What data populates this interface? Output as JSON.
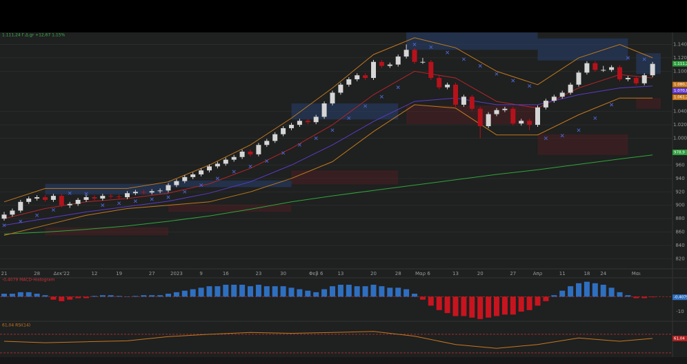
{
  "chart_data": {
    "type": "candlestick",
    "header": "1.111,24 Γ.Δ.gr +12,67 1,15%",
    "categories": [
      "21",
      null,
      null,
      null,
      "28",
      null,
      null,
      "Δεκ'22",
      null,
      null,
      null,
      "12",
      null,
      null,
      "19",
      null,
      null,
      null,
      "27",
      null,
      null,
      "2023",
      null,
      null,
      "9",
      null,
      null,
      "16",
      null,
      null,
      null,
      "23",
      null,
      null,
      "30",
      null,
      null,
      null,
      "Φεβ 6",
      null,
      null,
      "13",
      null,
      null,
      null,
      "20",
      null,
      null,
      "28",
      null,
      null,
      "Μαρ 6",
      null,
      null,
      null,
      "13",
      null,
      null,
      "20",
      null,
      null,
      null,
      "27",
      null,
      null,
      "Απρ",
      null,
      null,
      "11",
      null,
      null,
      "18",
      null,
      "24",
      null,
      null,
      null,
      "Μαι",
      null,
      null
    ],
    "candles": [
      [
        880,
        890,
        877,
        886
      ],
      [
        886,
        895,
        883,
        892
      ],
      [
        892,
        908,
        889,
        905
      ],
      [
        905,
        913,
        902,
        910
      ],
      [
        910,
        915,
        907,
        912
      ],
      [
        912,
        915,
        905,
        908
      ],
      [
        908,
        917,
        905,
        914
      ],
      [
        914,
        917,
        897,
        900
      ],
      [
        900,
        905,
        896,
        902
      ],
      [
        902,
        911,
        899,
        908
      ],
      [
        908,
        915,
        905,
        912
      ],
      [
        912,
        915,
        907,
        910
      ],
      [
        910,
        917,
        907,
        914
      ],
      [
        914,
        917,
        910,
        913
      ],
      [
        913,
        916,
        909,
        912
      ],
      [
        912,
        921,
        909,
        918
      ],
      [
        918,
        923,
        915,
        920
      ],
      [
        920,
        923,
        916,
        919
      ],
      [
        919,
        924,
        916,
        921
      ],
      [
        921,
        925,
        918,
        922
      ],
      [
        922,
        933,
        919,
        930
      ],
      [
        930,
        939,
        927,
        936
      ],
      [
        936,
        945,
        933,
        942
      ],
      [
        942,
        949,
        939,
        946
      ],
      [
        946,
        955,
        943,
        952
      ],
      [
        952,
        961,
        949,
        958
      ],
      [
        958,
        965,
        955,
        962
      ],
      [
        962,
        971,
        959,
        968
      ],
      [
        968,
        975,
        965,
        972
      ],
      [
        972,
        983,
        969,
        980
      ],
      [
        980,
        983,
        973,
        976
      ],
      [
        976,
        993,
        973,
        990
      ],
      [
        990,
        999,
        987,
        996
      ],
      [
        996,
        1009,
        993,
        1006
      ],
      [
        1006,
        1018,
        1003,
        1015
      ],
      [
        1015,
        1023,
        1012,
        1020
      ],
      [
        1020,
        1029,
        1017,
        1026
      ],
      [
        1026,
        1029,
        1021,
        1024
      ],
      [
        1024,
        1035,
        1021,
        1032
      ],
      [
        1032,
        1055,
        1029,
        1052
      ],
      [
        1052,
        1071,
        1049,
        1068
      ],
      [
        1068,
        1083,
        1065,
        1080
      ],
      [
        1080,
        1091,
        1077,
        1088
      ],
      [
        1088,
        1097,
        1085,
        1094
      ],
      [
        1094,
        1097,
        1087,
        1090
      ],
      [
        1090,
        1117,
        1087,
        1114
      ],
      [
        1114,
        1117,
        1105,
        1108
      ],
      [
        1108,
        1113,
        1105,
        1110
      ],
      [
        1110,
        1125,
        1107,
        1122
      ],
      [
        1122,
        1140,
        1119,
        1132
      ],
      [
        1132,
        1135,
        1111,
        1114
      ],
      [
        1114,
        1120,
        1111,
        1114
      ],
      [
        1114,
        1117,
        1087,
        1090
      ],
      [
        1090,
        1093,
        1073,
        1076
      ],
      [
        1076,
        1083,
        1073,
        1080
      ],
      [
        1080,
        1083,
        1047,
        1050
      ],
      [
        1050,
        1065,
        1047,
        1062
      ],
      [
        1062,
        1065,
        1041,
        1044
      ],
      [
        1044,
        1047,
        1000,
        1018
      ],
      [
        1018,
        1039,
        1015,
        1036
      ],
      [
        1036,
        1045,
        1033,
        1042
      ],
      [
        1042,
        1047,
        1039,
        1044
      ],
      [
        1044,
        1047,
        1019,
        1022
      ],
      [
        1022,
        1029,
        1019,
        1026
      ],
      [
        1026,
        1029,
        1012,
        1020
      ],
      [
        1020,
        1049,
        1017,
        1046
      ],
      [
        1046,
        1059,
        1043,
        1056
      ],
      [
        1056,
        1065,
        1053,
        1062
      ],
      [
        1062,
        1071,
        1059,
        1068
      ],
      [
        1068,
        1083,
        1065,
        1080
      ],
      [
        1080,
        1101,
        1077,
        1098
      ],
      [
        1098,
        1115,
        1095,
        1112
      ],
      [
        1112,
        1115,
        1099,
        1102
      ],
      [
        1102,
        1108,
        1099,
        1102
      ],
      [
        1102,
        1109,
        1099,
        1106
      ],
      [
        1106,
        1109,
        1085,
        1088
      ],
      [
        1088,
        1093,
        1085,
        1090
      ],
      [
        1090,
        1093,
        1079,
        1082
      ],
      [
        1082,
        1097,
        1079,
        1094
      ],
      [
        1094,
        1114,
        1091,
        1111
      ]
    ],
    "up_color": "#d6d6d6",
    "down_color": "#b5121b",
    "ylim": [
      805,
      1158
    ],
    "yticks": [
      {
        "value": 1140,
        "label": "1.140"
      },
      {
        "value": 1120,
        "label": "1.120"
      },
      {
        "value": 1100,
        "label": "1.100"
      },
      {
        "value": 1040,
        "label": "1.040"
      },
      {
        "value": 1020,
        "label": "1.020"
      },
      {
        "value": 1000,
        "label": "1.000"
      },
      960,
      940,
      920,
      900,
      880,
      860,
      840,
      820
    ],
    "grid": true,
    "line_x": [
      0,
      5,
      10,
      15,
      20,
      25,
      30,
      35,
      40,
      45,
      50,
      55,
      60,
      65,
      70,
      75,
      79
    ],
    "lines": [
      {
        "color": "#2fa83a",
        "values": [
          857,
          860,
          864,
          869,
          876,
          884,
          894,
          905,
          914,
          922,
          930,
          938,
          946,
          953,
          961,
          969,
          975
        ]
      },
      {
        "color": "#c27a1c",
        "values": [
          905,
          925,
          925,
          925,
          935,
          960,
          990,
          1030,
          1075,
          1125,
          1150,
          1135,
          1100,
          1080,
          1120,
          1140,
          1120
        ]
      },
      {
        "color": "#c27a1c",
        "values": [
          855,
          870,
          885,
          895,
          900,
          905,
          920,
          940,
          965,
          1010,
          1050,
          1045,
          1005,
          1005,
          1035,
          1060,
          1060
        ]
      },
      {
        "color": "#b3262a",
        "values": [
          880,
          895,
          905,
          910,
          918,
          932,
          955,
          985,
          1020,
          1065,
          1100,
          1090,
          1055,
          1045,
          1075,
          1095,
          1090
        ]
      },
      {
        "color": "#5a3cc8",
        "values": [
          870,
          880,
          890,
          898,
          906,
          918,
          935,
          960,
          990,
          1025,
          1055,
          1060,
          1050,
          1050,
          1065,
          1075,
          1078
        ]
      }
    ],
    "sar": {
      "color": "#4a63c9",
      "x": [
        0,
        2,
        4,
        6,
        8,
        10,
        12,
        14,
        16,
        18,
        20,
        22,
        24,
        26,
        28,
        30,
        32,
        34,
        36,
        38,
        40,
        42,
        44,
        46,
        48,
        50,
        52,
        54,
        56,
        58,
        60,
        62,
        64,
        66,
        68,
        70,
        72,
        74,
        76,
        78
      ],
      "values": [
        870,
        876,
        885,
        893,
        918,
        917,
        900,
        903,
        906,
        909,
        912,
        920,
        930,
        940,
        950,
        958,
        966,
        978,
        990,
        1000,
        1012,
        1030,
        1048,
        1062,
        1076,
        1140,
        1136,
        1128,
        1118,
        1108,
        1096,
        1086,
        1078,
        1000,
        1004,
        1012,
        1030,
        1050,
        1120,
        1118
      ]
    },
    "zones": [
      [
        5,
        20,
        916,
        932,
        "#27406e"
      ],
      [
        20,
        35,
        927,
        937,
        "#27406e"
      ],
      [
        35,
        48,
        1028,
        1052,
        "#27406e"
      ],
      [
        49,
        65,
        1132,
        1158,
        "#27406e"
      ],
      [
        65,
        76,
        1116,
        1149,
        "#27406e"
      ],
      [
        77,
        80,
        1096,
        1127,
        "#27406e"
      ],
      [
        5,
        20,
        855,
        867,
        "#4a1f22"
      ],
      [
        20,
        35,
        890,
        901,
        "#4a1f22"
      ],
      [
        35,
        48,
        931,
        952,
        "#4a1f22"
      ],
      [
        49,
        65,
        1021,
        1049,
        "#4a1f22"
      ],
      [
        65,
        76,
        975,
        1006,
        "#4a1f22"
      ],
      [
        77,
        80,
        1044,
        1060,
        "#4a1f22"
      ]
    ],
    "price_tags": [
      {
        "value": 1111.24,
        "label": "1.111,24",
        "color": "#2e9e3e"
      },
      {
        "value": 1080.1,
        "label": "1.080,10",
        "color": "#c8781e"
      },
      {
        "value": 1070.86,
        "label": "1.070,86",
        "color": "#6b3fd1"
      },
      {
        "value": 1061.2,
        "label": "1.061,2",
        "color": "#c8781e"
      },
      {
        "value": 978.9,
        "label": "978,9",
        "color": "#2e9e3e"
      }
    ],
    "macd": {
      "title": "-0,4079 MACD-Histogram",
      "pos_color": "#2f6fc0",
      "neg_color": "#c8141e",
      "values": [
        2,
        2,
        3,
        3,
        2,
        1,
        -2,
        -3,
        -2,
        -1,
        -1,
        0.5,
        1,
        1,
        0.5,
        0,
        0.5,
        1,
        1,
        1,
        2,
        3,
        4,
        5,
        6,
        7,
        7,
        8,
        8,
        8,
        7,
        8,
        7,
        7,
        7,
        6,
        5,
        4,
        3,
        5,
        7,
        8,
        8,
        7,
        7,
        8,
        7,
        6,
        6,
        5,
        2,
        -2,
        -6,
        -9,
        -11,
        -13,
        -13,
        -14,
        -15,
        -14,
        -13,
        -12,
        -12,
        -10,
        -9,
        -6,
        -3,
        1,
        4,
        7,
        9,
        10,
        9,
        8,
        6,
        3,
        1,
        -1,
        -1,
        -0.4079
      ],
      "ylim": [
        -16,
        11.7
      ],
      "yticks": [
        -10
      ],
      "current": {
        "value": -0.4079,
        "label": "-0,4079"
      }
    },
    "rsi": {
      "title": "61,04 RSI(14)",
      "color": "#c8781e",
      "values": [
        55,
        52,
        54,
        56,
        65,
        70,
        74,
        72,
        74,
        76,
        66,
        48,
        40,
        48,
        62,
        55,
        61.04
      ],
      "ylim": [
        21,
        95
      ],
      "levels": [
        30,
        70
      ],
      "current": {
        "value": 61.04,
        "label": "61,04"
      }
    }
  }
}
